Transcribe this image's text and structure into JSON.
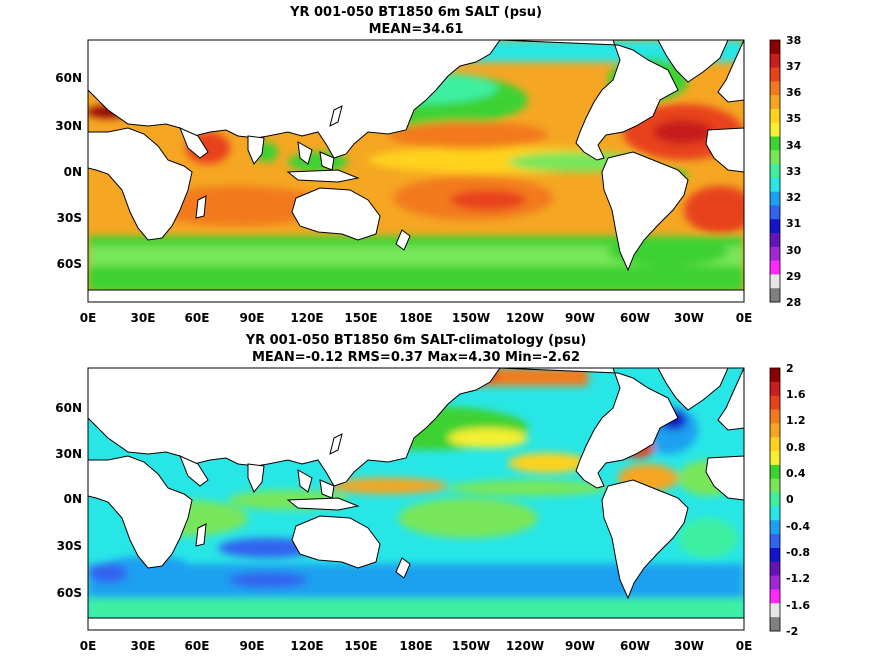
{
  "panels": [
    {
      "title_line1": "YR 001-050 BT1850 6m SALT (psu)",
      "title_line2": "MEAN=34.61",
      "lat_ticks": [
        "60N",
        "30N",
        "0N",
        "30S",
        "60S"
      ],
      "lon_ticks": [
        "0E",
        "30E",
        "60E",
        "90E",
        "120E",
        "150E",
        "180E",
        "150W",
        "120W",
        "90W",
        "60W",
        "30W",
        "0E"
      ],
      "colorbar": {
        "labels": [
          "38",
          "37",
          "36",
          "35",
          "34",
          "33",
          "32",
          "31",
          "30",
          "29",
          "28"
        ],
        "colors": [
          "#8b0000",
          "#c81e1e",
          "#e8421a",
          "#f27a1e",
          "#f5a623",
          "#ffd21e",
          "#f5f032",
          "#3cd232",
          "#78e65a",
          "#3cf0a0",
          "#28e6e6",
          "#1ea0f0",
          "#3264f0",
          "#1414c8",
          "#6414b4",
          "#a028d2",
          "#ff28ff",
          "#e6e6e6",
          "#808080"
        ]
      }
    },
    {
      "title_line1": "YR 001-050 BT1850 6m SALT-climatology (psu)",
      "title_line2": "MEAN=-0.12   RMS=0.37   Max=4.30   Min=-2.62",
      "lat_ticks": [
        "60N",
        "30N",
        "0N",
        "30S",
        "60S"
      ],
      "lon_ticks": [
        "0E",
        "30E",
        "60E",
        "90E",
        "120E",
        "150E",
        "180E",
        "150W",
        "120W",
        "90W",
        "60W",
        "30W",
        "0E"
      ],
      "colorbar": {
        "labels": [
          "2",
          "1.6",
          "1.2",
          "0.8",
          "0.4",
          "0",
          "-0.4",
          "-0.8",
          "-1.2",
          "-1.6",
          "-2"
        ],
        "colors": [
          "#8b0000",
          "#c81e1e",
          "#e8421a",
          "#f27a1e",
          "#f5a623",
          "#ffd21e",
          "#f5f032",
          "#3cd232",
          "#78e65a",
          "#3cf0a0",
          "#28e6e6",
          "#1ea0f0",
          "#3264f0",
          "#1414c8",
          "#6414b4",
          "#a028d2",
          "#ff28ff",
          "#e6e6e6",
          "#808080"
        ]
      }
    }
  ]
}
